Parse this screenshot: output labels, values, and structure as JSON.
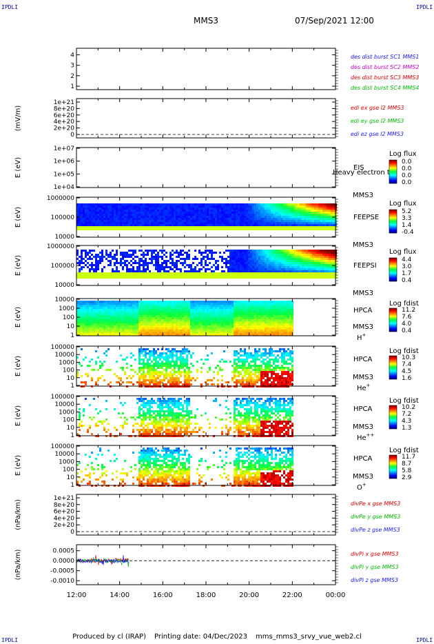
{
  "header": {
    "left_corner": "IPDLI",
    "right_corner": "IPDLI",
    "title": "MMS3",
    "datetime": "07/Sep/2021 12:00"
  },
  "footer": {
    "produced_by": "Produced by cl (IRAP)",
    "printing_date": "Printing date: 04/Dec/2023",
    "filename": "mms_mms3_srvy_vue_web2.cl"
  },
  "colors": {
    "blue": "#1a1aff",
    "magenta": "#cc00cc",
    "red": "#e00000",
    "green": "#00bb00",
    "darkblue": "#0000aa"
  },
  "time_axis": {
    "ticks": [
      "12:00",
      "14:00",
      "16:00",
      "18:00",
      "20:00",
      "22:00",
      "00:00"
    ]
  },
  "chart_data": [
    {
      "type": "line",
      "id": "burst",
      "ylabel": "",
      "yticks": [
        "1",
        "2",
        "3",
        "4"
      ],
      "legend": [
        {
          "text": "des dist burst SC1 MMS1",
          "color": "#1a1aff"
        },
        {
          "text": "des dist burst SC2 MMS2",
          "color": "#cc00cc"
        },
        {
          "text": "des dist burst SC3 MMS3",
          "color": "#e00000"
        },
        {
          "text": "des dist burst SC4 MMS4",
          "color": "#00bb00"
        }
      ]
    },
    {
      "type": "line",
      "id": "edi",
      "ylabel": "(mV/m)",
      "yticks": [
        "0",
        "2e+20",
        "4e+20",
        "6e+20",
        "8e+20",
        "1e+21"
      ],
      "legend": [
        {
          "text": "edi ex gse l2 MMS3",
          "color": "#e00000"
        },
        {
          "text": "edi ey gse l2 MMS3",
          "color": "#00bb00"
        },
        {
          "text": "edi ez gse l2 MMS3",
          "color": "#1a1aff"
        }
      ]
    },
    {
      "type": "heatmap",
      "id": "eis",
      "ylabel": "E (eV)",
      "yticks": [
        "1e+04",
        "1e+05",
        "1e+06",
        "1e+07"
      ],
      "instrument": "EIS",
      "instrument_extra": "Heavy electron to",
      "spacecraft": "MMS3",
      "cbar_title": "Log flux",
      "cbar_ticks": [
        "0.0",
        "0.0",
        "0.0",
        "0.0"
      ]
    },
    {
      "type": "heatmap",
      "id": "feepse",
      "ylabel": "E (eV)",
      "yticks": [
        "10000",
        "100000",
        "1000000"
      ],
      "instrument": "FEEPSE",
      "spacecraft": "MMS3",
      "cbar_title": "Log flux",
      "cbar_ticks": [
        "5.2",
        "3.3",
        "1.4",
        "-0.4"
      ],
      "data_end_hour": 24
    },
    {
      "type": "heatmap",
      "id": "feepsi",
      "ylabel": "E (eV)",
      "yticks": [
        "10000",
        "100000",
        "1000000"
      ],
      "instrument": "FEEPSI",
      "spacecraft": "MMS3",
      "cbar_title": "Log flux",
      "cbar_ticks": [
        "4.4",
        "3.0",
        "1.7",
        "0.4"
      ],
      "data_end_hour": 24
    },
    {
      "type": "heatmap",
      "id": "hpca_h",
      "ylabel": "E (eV)",
      "yticks": [
        "1",
        "10",
        "100",
        "1000",
        "10000"
      ],
      "instrument": "HPCA",
      "spacecraft": "MMS3",
      "species": "H",
      "species_charge": "+",
      "cbar_title": "Log fdist",
      "cbar_ticks": [
        "11.2",
        "7.6",
        "4.0",
        "0.4"
      ],
      "data_end_hour": 22
    },
    {
      "type": "heatmap",
      "id": "hpca_he",
      "ylabel": "E (eV)",
      "yticks": [
        "1",
        "10",
        "100",
        "1000",
        "10000",
        "100000"
      ],
      "instrument": "HPCA",
      "spacecraft": "MMS3",
      "species": "He",
      "species_charge": "+",
      "cbar_title": "Log fdist",
      "cbar_ticks": [
        "10.3",
        "7.4",
        "4.5",
        "1.6"
      ],
      "data_end_hour": 22
    },
    {
      "type": "heatmap",
      "id": "hpca_hepp",
      "ylabel": "E (eV)",
      "yticks": [
        "1",
        "10",
        "100",
        "1000",
        "10000",
        "100000"
      ],
      "instrument": "HPCA",
      "spacecraft": "MMS3",
      "species": "He",
      "species_charge": "++",
      "cbar_title": "Log fdist",
      "cbar_ticks": [
        "10.2",
        "7.2",
        "4.3",
        "1.3"
      ],
      "data_end_hour": 22
    },
    {
      "type": "heatmap",
      "id": "hpca_o",
      "ylabel": "E (eV)",
      "yticks": [
        "1",
        "10",
        "100",
        "1000",
        "10000",
        "100000"
      ],
      "instrument": "HPCA",
      "spacecraft": "MMS3",
      "species": "O",
      "species_charge": "+",
      "cbar_title": "Log fdist",
      "cbar_ticks": [
        "11.7",
        "8.7",
        "5.8",
        "2.9"
      ],
      "data_end_hour": 22
    },
    {
      "type": "line",
      "id": "divpe",
      "ylabel": "(nPa/km)",
      "yticks": [
        "0",
        "2e+20",
        "4e+20",
        "6e+20",
        "8e+20",
        "1e+21"
      ],
      "legend": [
        {
          "text": "divPe x gse MMS3",
          "color": "#e00000"
        },
        {
          "text": "divPe y gse MMS3",
          "color": "#00bb00"
        },
        {
          "text": "divPe z gse MMS3",
          "color": "#1a1aff"
        }
      ]
    },
    {
      "type": "line",
      "id": "divpi",
      "ylabel": "(nPa/km)",
      "yticks": [
        "-0.0010",
        "-0.0005",
        "0.0000",
        "0.0005"
      ],
      "yvalues": [
        -0.001,
        -0.0005,
        0.0,
        0.0005
      ],
      "ylim": [
        -0.0012,
        0.0008
      ],
      "data_end_hour": 14.45,
      "legend": [
        {
          "text": "divPi x gse MMS3",
          "color": "#e00000"
        },
        {
          "text": "divPi y gse MMS3",
          "color": "#00bb00"
        },
        {
          "text": "divPi z gse MMS3",
          "color": "#1a1aff"
        }
      ]
    }
  ]
}
